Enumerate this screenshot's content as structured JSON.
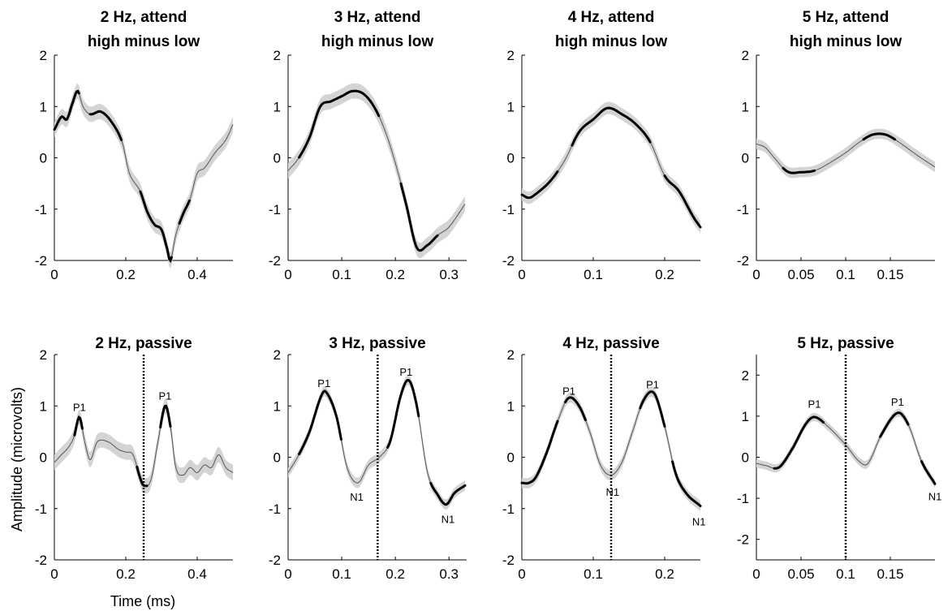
{
  "figure": {
    "xlabel": "Time (ms)",
    "ylabel": "Amplitude (microvolts)"
  },
  "chart_data": [
    {
      "type": "line",
      "title": [
        "2 Hz, attend",
        "high minus low"
      ],
      "xlim": [
        0,
        0.5
      ],
      "ylim": [
        -2,
        2
      ],
      "xticks": [
        0,
        0.2,
        0.4
      ],
      "xtick_labels": [
        "0",
        "0.2",
        "0.4"
      ],
      "yticks": [
        -2,
        -1,
        0,
        1,
        2
      ],
      "ytick_labels": [
        "-2",
        "-1",
        "0",
        "1",
        "2"
      ],
      "series": [
        {
          "x": [
            0,
            0.02,
            0.035,
            0.05,
            0.065,
            0.08,
            0.1,
            0.13,
            0.16,
            0.19,
            0.21,
            0.24,
            0.26,
            0.28,
            0.3,
            0.315,
            0.325,
            0.34,
            0.36,
            0.38,
            0.4,
            0.42,
            0.45,
            0.48,
            0.5
          ],
          "y": [
            0.55,
            0.8,
            0.75,
            1.05,
            1.3,
            1.0,
            0.85,
            0.9,
            0.7,
            0.3,
            -0.3,
            -0.65,
            -1.05,
            -1.3,
            -1.4,
            -1.75,
            -2.0,
            -1.5,
            -1.1,
            -0.8,
            -0.3,
            -0.2,
            0.1,
            0.35,
            0.65
          ],
          "band": 0.15
        }
      ],
      "sig": [
        [
          0,
          0.07
        ],
        [
          0.1,
          0.19
        ],
        [
          0.24,
          0.33
        ],
        [
          0.35,
          0.38
        ]
      ],
      "vline": null,
      "annotations": []
    },
    {
      "type": "line",
      "title": [
        "3 Hz, attend",
        "high minus low"
      ],
      "xlim": [
        0,
        0.333
      ],
      "ylim": [
        -2,
        2
      ],
      "xticks": [
        0,
        0.1,
        0.2,
        0.3
      ],
      "xtick_labels": [
        "0",
        "0.1",
        "0.2",
        "0.3"
      ],
      "yticks": [
        -2,
        -1,
        0,
        1,
        2
      ],
      "ytick_labels": [
        "-2",
        "-1",
        "0",
        "1",
        "2"
      ],
      "series": [
        {
          "x": [
            0,
            0.02,
            0.04,
            0.06,
            0.08,
            0.1,
            0.12,
            0.14,
            0.16,
            0.18,
            0.2,
            0.22,
            0.24,
            0.26,
            0.28,
            0.3,
            0.33
          ],
          "y": [
            -0.25,
            0.0,
            0.4,
            1.0,
            1.1,
            1.2,
            1.3,
            1.25,
            1.0,
            0.55,
            -0.1,
            -0.9,
            -1.75,
            -1.7,
            -1.5,
            -1.35,
            -0.9
          ],
          "band": 0.15
        }
      ],
      "sig": [
        [
          0.02,
          0.17
        ],
        [
          0.21,
          0.28
        ]
      ],
      "vline": null,
      "annotations": []
    },
    {
      "type": "line",
      "title": [
        "4 Hz, attend",
        "high minus low"
      ],
      "xlim": [
        0,
        0.25
      ],
      "ylim": [
        -2,
        2
      ],
      "xticks": [
        0,
        0.1,
        0.2
      ],
      "xtick_labels": [
        "0",
        "0.1",
        "0.2"
      ],
      "yticks": [
        -2,
        -1,
        0,
        1,
        2
      ],
      "ytick_labels": [
        "-2",
        "-1",
        "0",
        "1",
        "2"
      ],
      "series": [
        {
          "x": [
            0,
            0.01,
            0.02,
            0.04,
            0.06,
            0.08,
            0.1,
            0.12,
            0.14,
            0.16,
            0.18,
            0.2,
            0.22,
            0.24,
            0.25
          ],
          "y": [
            -0.72,
            -0.78,
            -0.7,
            -0.45,
            -0.05,
            0.5,
            0.75,
            0.97,
            0.85,
            0.65,
            0.3,
            -0.35,
            -0.65,
            -1.15,
            -1.35
          ],
          "band": 0.12
        }
      ],
      "sig": [
        [
          0,
          0.05
        ],
        [
          0.07,
          0.18
        ],
        [
          0.2,
          0.25
        ]
      ],
      "vline": null,
      "annotations": []
    },
    {
      "type": "line",
      "title": [
        "5 Hz, attend",
        "high minus low"
      ],
      "xlim": [
        0,
        0.2
      ],
      "ylim": [
        -2,
        2
      ],
      "xticks": [
        0,
        0.05,
        0.1,
        0.15
      ],
      "xtick_labels": [
        "0",
        "0.05",
        "0.1",
        "0.15"
      ],
      "yticks": [
        -2,
        -1,
        0,
        1,
        2
      ],
      "ytick_labels": [
        "-2",
        "-1",
        "0",
        "1",
        "2"
      ],
      "series": [
        {
          "x": [
            0,
            0.01,
            0.02,
            0.035,
            0.05,
            0.065,
            0.08,
            0.1,
            0.115,
            0.13,
            0.145,
            0.16,
            0.18,
            0.2
          ],
          "y": [
            0.27,
            0.2,
            0.0,
            -0.27,
            -0.28,
            -0.25,
            -0.12,
            0.1,
            0.3,
            0.45,
            0.45,
            0.3,
            0.05,
            -0.18
          ],
          "band": 0.1
        }
      ],
      "sig": [
        [
          0.03,
          0.065
        ],
        [
          0.12,
          0.155
        ]
      ],
      "vline": null,
      "annotations": []
    },
    {
      "type": "line",
      "title": [
        "2 Hz, passive"
      ],
      "xlim": [
        0,
        0.5
      ],
      "ylim": [
        -2,
        2
      ],
      "xticks": [
        0,
        0.2,
        0.4
      ],
      "xtick_labels": [
        "0",
        "0.2",
        "0.4"
      ],
      "yticks": [
        -2,
        -1,
        0,
        1,
        2
      ],
      "ytick_labels": [
        "-2",
        "-1",
        "0",
        "1",
        "2"
      ],
      "series": [
        {
          "x": [
            0,
            0.02,
            0.04,
            0.055,
            0.07,
            0.085,
            0.1,
            0.12,
            0.15,
            0.18,
            0.2,
            0.22,
            0.24,
            0.25,
            0.27,
            0.29,
            0.31,
            0.325,
            0.34,
            0.36,
            0.38,
            0.4,
            0.42,
            0.44,
            0.46,
            0.48,
            0.5
          ],
          "y": [
            -0.1,
            0.05,
            0.2,
            0.4,
            0.78,
            0.3,
            -0.05,
            0.3,
            0.3,
            0.15,
            0.1,
            0.05,
            -0.4,
            -0.55,
            -0.45,
            0.3,
            1.0,
            0.6,
            -0.2,
            -0.35,
            -0.2,
            -0.3,
            -0.15,
            -0.2,
            0.05,
            -0.2,
            -0.3
          ],
          "band": 0.15
        }
      ],
      "sig": [
        [
          0.055,
          0.08
        ],
        [
          0.23,
          0.26
        ],
        [
          0.295,
          0.325
        ]
      ],
      "vline": 0.25,
      "annotations": [
        {
          "text": "P1",
          "x": 0.07,
          "y": 0.98
        },
        {
          "text": "P1",
          "x": 0.31,
          "y": 1.2
        }
      ]
    },
    {
      "type": "line",
      "title": [
        "3 Hz, passive"
      ],
      "xlim": [
        0,
        0.333
      ],
      "ylim": [
        -2,
        2
      ],
      "xticks": [
        0,
        0.1,
        0.2,
        0.3
      ],
      "xtick_labels": [
        "0",
        "0.1",
        "0.2",
        "0.3"
      ],
      "yticks": [
        -2,
        -1,
        0,
        1,
        2
      ],
      "ytick_labels": [
        "-2",
        "-1",
        "0",
        "1",
        "2"
      ],
      "series": [
        {
          "x": [
            0,
            0.02,
            0.04,
            0.06,
            0.07,
            0.09,
            0.11,
            0.13,
            0.15,
            0.17,
            0.19,
            0.21,
            0.225,
            0.24,
            0.26,
            0.28,
            0.295,
            0.31,
            0.33
          ],
          "y": [
            -0.3,
            0.05,
            0.5,
            1.15,
            1.28,
            0.8,
            -0.2,
            -0.5,
            -0.15,
            0.0,
            0.3,
            1.2,
            1.5,
            1.0,
            -0.3,
            -0.75,
            -0.92,
            -0.7,
            -0.55
          ],
          "band": 0.1
        }
      ],
      "sig": [
        [
          0.02,
          0.1
        ],
        [
          0.185,
          0.245
        ],
        [
          0.265,
          0.333
        ]
      ],
      "vline": 0.167,
      "annotations": [
        {
          "text": "P1",
          "x": 0.067,
          "y": 1.45
        },
        {
          "text": "N1",
          "x": 0.128,
          "y": -0.77
        },
        {
          "text": "P1",
          "x": 0.22,
          "y": 1.67
        },
        {
          "text": "N1",
          "x": 0.298,
          "y": -1.2
        }
      ]
    },
    {
      "type": "line",
      "title": [
        "4 Hz, passive"
      ],
      "xlim": [
        0,
        0.25
      ],
      "ylim": [
        -2,
        2
      ],
      "xticks": [
        0,
        0.1,
        0.2
      ],
      "xtick_labels": [
        "0",
        "0.1",
        "0.2"
      ],
      "yticks": [
        -2,
        -1,
        0,
        1,
        2
      ],
      "ytick_labels": [
        "-2",
        "-1",
        "0",
        "1",
        "2"
      ],
      "series": [
        {
          "x": [
            0,
            0.01,
            0.02,
            0.035,
            0.05,
            0.065,
            0.08,
            0.095,
            0.11,
            0.125,
            0.14,
            0.155,
            0.17,
            0.185,
            0.2,
            0.215,
            0.23,
            0.25
          ],
          "y": [
            -0.5,
            -0.5,
            -0.38,
            0.1,
            0.7,
            1.15,
            1.0,
            0.5,
            -0.15,
            -0.35,
            -0.1,
            0.5,
            1.1,
            1.25,
            0.6,
            -0.3,
            -0.7,
            -0.95
          ],
          "band": 0.1
        }
      ],
      "sig": [
        [
          0,
          0.05
        ],
        [
          0.06,
          0.09
        ],
        [
          0.165,
          0.2
        ],
        [
          0.21,
          0.25
        ]
      ],
      "vline": 0.125,
      "annotations": [
        {
          "text": "P1",
          "x": 0.066,
          "y": 1.3
        },
        {
          "text": "N1",
          "x": 0.127,
          "y": -0.67
        },
        {
          "text": "P1",
          "x": 0.183,
          "y": 1.42
        },
        {
          "text": "N1",
          "x": 0.248,
          "y": -1.25
        }
      ]
    },
    {
      "type": "line",
      "title": [
        "5 Hz, passive"
      ],
      "xlim": [
        0,
        0.2
      ],
      "ylim": [
        -2.5,
        2.5
      ],
      "xticks": [
        0,
        0.05,
        0.1,
        0.15
      ],
      "xtick_labels": [
        "0",
        "0.05",
        "0.1",
        "0.15"
      ],
      "yticks": [
        -2,
        -1,
        0,
        1,
        2
      ],
      "ytick_labels": [
        "-2",
        "-1",
        "0",
        "1",
        "2"
      ],
      "series": [
        {
          "x": [
            0,
            0.01,
            0.025,
            0.04,
            0.055,
            0.065,
            0.08,
            0.1,
            0.115,
            0.125,
            0.14,
            0.158,
            0.17,
            0.185,
            0.2
          ],
          "y": [
            -0.15,
            -0.2,
            -0.25,
            0.2,
            0.8,
            0.98,
            0.75,
            0.3,
            -0.1,
            -0.15,
            0.55,
            1.08,
            0.8,
            -0.1,
            -0.65
          ],
          "band": 0.1
        }
      ],
      "sig": [
        [
          0.02,
          0.075
        ],
        [
          0.138,
          0.17
        ],
        [
          0.185,
          0.2
        ]
      ],
      "vline": 0.1,
      "annotations": [
        {
          "text": "P1",
          "x": 0.065,
          "y": 1.3
        },
        {
          "text": "P1",
          "x": 0.158,
          "y": 1.35
        },
        {
          "text": "N1",
          "x": 0.2,
          "y": -0.95
        }
      ]
    }
  ]
}
